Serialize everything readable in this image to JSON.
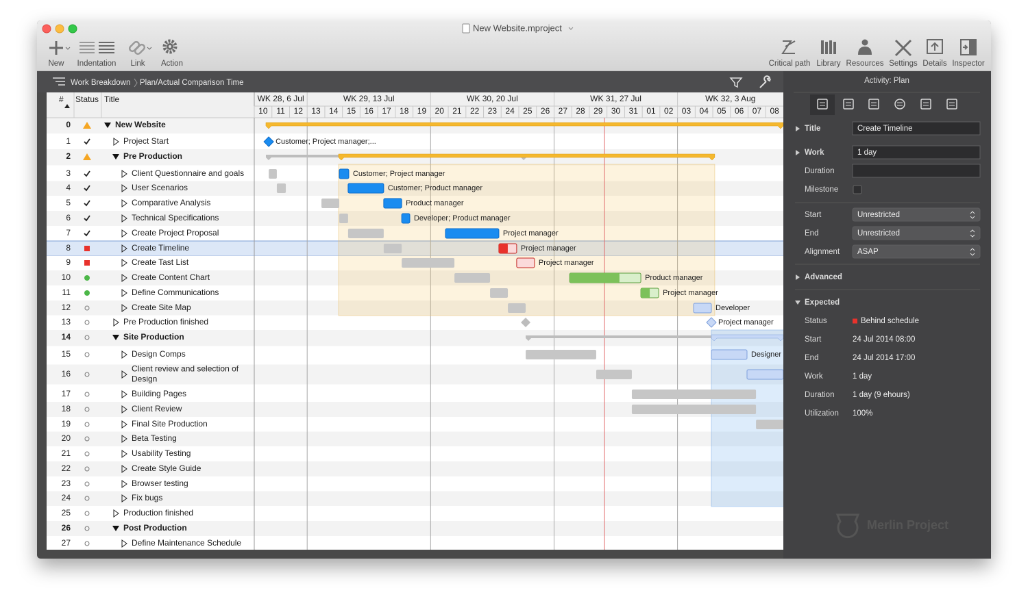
{
  "window": {
    "title": "New Website.mproject"
  },
  "toolbar": {
    "left": [
      "New",
      "Indentation",
      "Link",
      "Action"
    ],
    "right": [
      "Critical path",
      "Library",
      "Resources",
      "Settings",
      "Details",
      "Inspector"
    ]
  },
  "breadcrumb": [
    "Work Breakdown",
    "Plan/Actual Comparison Time"
  ],
  "table": {
    "headers": [
      "#",
      "Status",
      "Title"
    ],
    "rows": [
      {
        "num": 0,
        "status": "warning",
        "title": "New Website",
        "level": 0,
        "group": true
      },
      {
        "num": 1,
        "status": "done",
        "title": "Project Start",
        "level": 1
      },
      {
        "num": 2,
        "status": "warning",
        "title": "Pre Production",
        "level": 1,
        "group": true
      },
      {
        "num": 3,
        "status": "done",
        "title": "Client Questionnaire and goals",
        "level": 2
      },
      {
        "num": 4,
        "status": "done",
        "title": "User Scenarios",
        "level": 2
      },
      {
        "num": 5,
        "status": "done",
        "title": "Comparative Analysis",
        "level": 2
      },
      {
        "num": 6,
        "status": "done",
        "title": "Technical Specifications",
        "level": 2
      },
      {
        "num": 7,
        "status": "done",
        "title": "Create Project Proposal",
        "level": 2
      },
      {
        "num": 8,
        "status": "late",
        "title": "Create Timeline",
        "level": 2,
        "selected": true
      },
      {
        "num": 9,
        "status": "late",
        "title": "Create Tast List",
        "level": 2
      },
      {
        "num": 10,
        "status": "ontrack",
        "title": "Create Content Chart",
        "level": 2
      },
      {
        "num": 11,
        "status": "ontrack",
        "title": "Define Communications",
        "level": 2
      },
      {
        "num": 12,
        "status": "open",
        "title": "Create Site Map",
        "level": 2
      },
      {
        "num": 13,
        "status": "open",
        "title": "Pre Production finished",
        "level": 1
      },
      {
        "num": 14,
        "status": "open",
        "title": "Site Production",
        "level": 1,
        "group": true
      },
      {
        "num": 15,
        "status": "open",
        "title": "Design Comps",
        "level": 2
      },
      {
        "num": 16,
        "status": "open",
        "title": "Client review and selection of Design",
        "level": 2
      },
      {
        "num": 17,
        "status": "open",
        "title": "Building Pages",
        "level": 2
      },
      {
        "num": 18,
        "status": "open",
        "title": "Client Review",
        "level": 2
      },
      {
        "num": 19,
        "status": "open",
        "title": "Final Site Production",
        "level": 2
      },
      {
        "num": 20,
        "status": "open",
        "title": "Beta Testing",
        "level": 2
      },
      {
        "num": 21,
        "status": "open",
        "title": "Usability Testing",
        "level": 2
      },
      {
        "num": 22,
        "status": "open",
        "title": "Create Style Guide",
        "level": 2
      },
      {
        "num": 23,
        "status": "open",
        "title": "Browser testing",
        "level": 2
      },
      {
        "num": 24,
        "status": "open",
        "title": "Fix bugs",
        "level": 2
      },
      {
        "num": 25,
        "status": "open",
        "title": "Production finished",
        "level": 1
      },
      {
        "num": 26,
        "status": "open",
        "title": "Post Production",
        "level": 1,
        "group": true
      },
      {
        "num": 27,
        "status": "open",
        "title": "Define Maintenance Schedule",
        "level": 2
      }
    ]
  },
  "timeline": {
    "weeks": [
      "WK 28, 6 Jul",
      "WK 29, 13 Jul",
      "WK 30, 20 Jul",
      "WK 31, 27 Jul",
      "WK 32, 3 Aug"
    ],
    "days": [
      "10",
      "11",
      "12",
      "13",
      "14",
      "15",
      "16",
      "17",
      "18",
      "19",
      "20",
      "21",
      "22",
      "23",
      "24",
      "25",
      "26",
      "27",
      "28",
      "29",
      "30",
      "31",
      "01",
      "02",
      "03",
      "04",
      "05",
      "06",
      "07",
      "08"
    ],
    "bars": [
      {
        "row": 0,
        "shape": "summary",
        "actual": [
          0.66,
          30
        ],
        "state": "warning"
      },
      {
        "row": 1,
        "shape": "milestone",
        "actual": [
          0.82,
          0.82
        ],
        "state": "done",
        "label": "Customer; Project manager;..."
      },
      {
        "row": 2,
        "shape": "summary",
        "plan": [
          0.66,
          15.43
        ],
        "actual": [
          4.78,
          26.11
        ],
        "state": "warning"
      },
      {
        "row": 3,
        "plan": [
          0.82,
          1.28
        ],
        "actual": [
          4.82,
          5.36
        ],
        "state": "done",
        "label": "Customer; Project manager"
      },
      {
        "row": 4,
        "plan": [
          1.28,
          1.79
        ],
        "actual": [
          5.32,
          7.34
        ],
        "state": "done",
        "label": "Customer; Product manager"
      },
      {
        "row": 5,
        "plan": [
          3.81,
          4.82
        ],
        "actual": [
          7.34,
          8.36
        ],
        "state": "done",
        "label": "Product manager"
      },
      {
        "row": 6,
        "plan": [
          4.82,
          5.32
        ],
        "actual": [
          8.36,
          8.82
        ],
        "state": "done",
        "label": "Developer; Product manager"
      },
      {
        "row": 7,
        "plan": [
          5.32,
          7.34
        ],
        "actual": [
          10.84,
          13.87
        ],
        "state": "done",
        "label": "Project manager"
      },
      {
        "row": 8,
        "plan": [
          7.34,
          8.36
        ],
        "actual": [
          13.87,
          14.88
        ],
        "state": "late",
        "progress": 0.5,
        "label": "Project manager"
      },
      {
        "row": 9,
        "plan": [
          8.36,
          11.35
        ],
        "actual": [
          14.88,
          15.89
        ],
        "state": "late",
        "progress": 0,
        "label": "Project manager"
      },
      {
        "row": 10,
        "plan": [
          11.35,
          13.37
        ],
        "actual": [
          17.88,
          21.92
        ],
        "state": "ontrack",
        "progress": 0.7,
        "label": "Product manager"
      },
      {
        "row": 11,
        "plan": [
          13.37,
          14.38
        ],
        "actual": [
          21.92,
          22.93
        ],
        "state": "ontrack",
        "progress": 0.5,
        "label": "Project manager"
      },
      {
        "row": 12,
        "plan": [
          14.38,
          15.39
        ],
        "actual": [
          24.91,
          25.92
        ],
        "state": "open",
        "label": "Developer"
      },
      {
        "row": 13,
        "shape": "milestone",
        "plan": [
          15.39,
          15.39
        ],
        "actual": [
          25.92,
          25.92
        ],
        "state": "open",
        "label": "Project manager"
      },
      {
        "row": 14,
        "shape": "summary",
        "plan": [
          15.39,
          30
        ],
        "actual": [
          25.92,
          30
        ],
        "state": "open"
      },
      {
        "row": 15,
        "plan": [
          15.39,
          19.39
        ],
        "actual": [
          25.92,
          27.94
        ],
        "state": "open",
        "label": "Designer"
      },
      {
        "row": 16,
        "plan": [
          19.39,
          21.41
        ],
        "actual": [
          27.94,
          30
        ],
        "state": "open"
      },
      {
        "row": 17,
        "plan": [
          21.41,
          28.45
        ]
      },
      {
        "row": 18,
        "plan": [
          21.41,
          28.45
        ]
      },
      {
        "row": 19,
        "plan": [
          28.45,
          30
        ]
      }
    ]
  },
  "inspector": {
    "header": "Activity: Plan",
    "plan": [
      {
        "label": "Title",
        "value": "Create Timeline",
        "kind": "section"
      },
      {
        "label": "Work",
        "value": "1 day",
        "kind": "section"
      },
      {
        "label": "Duration",
        "kind": "field"
      },
      {
        "label": "Milestone",
        "kind": "checkbox"
      },
      {
        "label": "Start",
        "value": "Unrestricted",
        "kind": "popup"
      },
      {
        "label": "End",
        "value": "Unrestricted",
        "kind": "popup"
      },
      {
        "label": "Alignment",
        "value": "ASAP",
        "kind": "popup"
      }
    ],
    "advanced": "Advanced",
    "expected": {
      "title": "Expected",
      "rows": [
        {
          "label": "Status",
          "value": "Behind schedule",
          "indicator": "late"
        },
        {
          "label": "Start",
          "value": "24 Jul 2014 08:00"
        },
        {
          "label": "End",
          "value": "24 Jul 2014 17:00"
        },
        {
          "label": "Work",
          "value": "1 day"
        },
        {
          "label": "Duration",
          "value": "1 day (9 ehours)"
        },
        {
          "label": "Utilization",
          "value": "100%"
        }
      ]
    },
    "watermark": "Merlin Project"
  }
}
